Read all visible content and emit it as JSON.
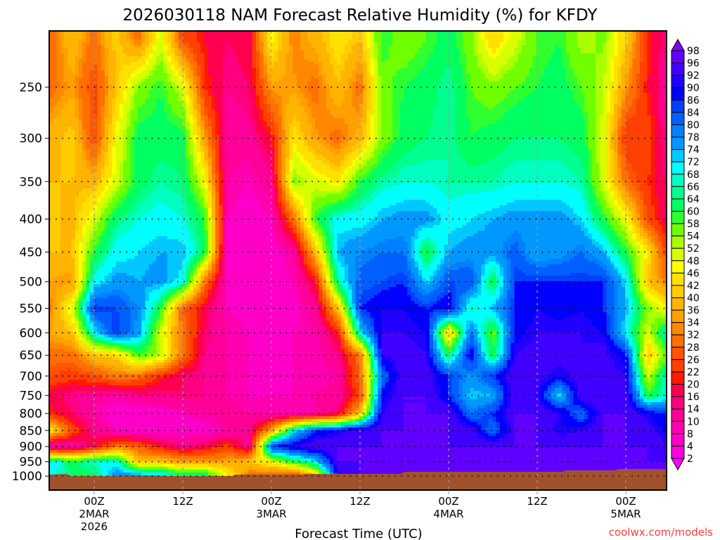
{
  "chart_data": {
    "type": "heatmap",
    "title": "2026030118 NAM Forecast Relative Humidity (%) for KFDY",
    "xlabel": "Forecast Time (UTC)",
    "ylabel": "",
    "credit": "coolwx.com/models",
    "x_unit": "hours since 18Z 1 Mar 2026",
    "xlim": [
      0,
      84
    ],
    "ylim_hPa": [
      1050,
      205
    ],
    "y_scale": "log-pressure",
    "grid": true,
    "yticks": [
      "250",
      "300",
      "350",
      "400",
      "450",
      "500",
      "550",
      "600",
      "650",
      "700",
      "750",
      "800",
      "850",
      "900",
      "950",
      "1000"
    ],
    "ytick_values": [
      250,
      300,
      350,
      400,
      450,
      500,
      550,
      600,
      650,
      700,
      750,
      800,
      850,
      900,
      950,
      1000
    ],
    "xticks": [
      {
        "hour": 6,
        "label": "00Z",
        "date": "2MAR",
        "year": "2026"
      },
      {
        "hour": 18,
        "label": "12Z",
        "date": "",
        "year": ""
      },
      {
        "hour": 30,
        "label": "00Z",
        "date": "3MAR",
        "year": ""
      },
      {
        "hour": 42,
        "label": "12Z",
        "date": "",
        "year": ""
      },
      {
        "hour": 54,
        "label": "00Z",
        "date": "4MAR",
        "year": ""
      },
      {
        "hour": 66,
        "label": "12Z",
        "date": "",
        "year": ""
      },
      {
        "hour": 78,
        "label": "00Z",
        "date": "5MAR",
        "year": ""
      }
    ],
    "colorbar": {
      "labels": [
        "98",
        "96",
        "92",
        "90",
        "86",
        "84",
        "80",
        "78",
        "74",
        "72",
        "68",
        "66",
        "64",
        "60",
        "58",
        "54",
        "52",
        "48",
        "46",
        "42",
        "40",
        "36",
        "34",
        "32",
        "28",
        "26",
        "22",
        "20",
        "16",
        "14",
        "10",
        "8",
        "4",
        "2"
      ],
      "colors_low_to_high": [
        "#ff00ff",
        "#ff00e0",
        "#ff00c8",
        "#ff00b0",
        "#ff0098",
        "#ff0080",
        "#ff0050",
        "#ff1a00",
        "#ff4000",
        "#ff5500",
        "#ff7000",
        "#ff8800",
        "#ffa000",
        "#ffb400",
        "#ffcc00",
        "#ffe000",
        "#ffff00",
        "#d8ff00",
        "#aaff00",
        "#70ff00",
        "#30ff30",
        "#00ff60",
        "#00ff90",
        "#00ffc0",
        "#00ffff",
        "#00c8ff",
        "#0098ff",
        "#0080ff",
        "#0060ff",
        "#0040ff",
        "#0000ff",
        "#2000ff",
        "#4000ff",
        "#6000ff",
        "#8000ff"
      ],
      "boundaries": [
        2,
        4,
        8,
        10,
        14,
        16,
        20,
        22,
        26,
        28,
        32,
        34,
        36,
        40,
        42,
        46,
        48,
        52,
        54,
        58,
        60,
        64,
        66,
        68,
        72,
        74,
        78,
        80,
        84,
        86,
        90,
        92,
        96,
        98
      ]
    },
    "terrain_color": "#a0522d",
    "hours": [
      0,
      3,
      6,
      9,
      12,
      15,
      18,
      21,
      24,
      27,
      30,
      33,
      36,
      39,
      42,
      45,
      48,
      51,
      54,
      57,
      60,
      63,
      66,
      69,
      72,
      75,
      78,
      81,
      84
    ],
    "levels_hPa": [
      210,
      250,
      300,
      350,
      400,
      450,
      500,
      550,
      600,
      650,
      700,
      750,
      800,
      850,
      900,
      950,
      1000
    ],
    "rh": [
      [
        28,
        40,
        30,
        42,
        30,
        50,
        25,
        20,
        16,
        18,
        48,
        32,
        38,
        45,
        40,
        60,
        55,
        58,
        62,
        55,
        42,
        50,
        58,
        60,
        52,
        55,
        42,
        22,
        12
      ],
      [
        30,
        35,
        25,
        40,
        55,
        60,
        50,
        22,
        14,
        16,
        35,
        35,
        30,
        40,
        30,
        56,
        60,
        62,
        66,
        58,
        55,
        58,
        60,
        62,
        58,
        52,
        35,
        20,
        10
      ],
      [
        38,
        42,
        25,
        48,
        62,
        62,
        62,
        35,
        12,
        12,
        20,
        45,
        35,
        30,
        38,
        55,
        62,
        64,
        66,
        60,
        62,
        64,
        64,
        64,
        62,
        50,
        22,
        25,
        10
      ],
      [
        40,
        40,
        38,
        50,
        62,
        66,
        64,
        48,
        10,
        8,
        12,
        55,
        50,
        45,
        60,
        66,
        68,
        68,
        66,
        66,
        66,
        68,
        68,
        68,
        66,
        50,
        30,
        22,
        14
      ],
      [
        42,
        38,
        50,
        64,
        68,
        70,
        68,
        60,
        8,
        6,
        8,
        30,
        60,
        70,
        70,
        74,
        76,
        76,
        70,
        72,
        74,
        76,
        76,
        76,
        72,
        60,
        48,
        25,
        16
      ],
      [
        40,
        40,
        60,
        70,
        72,
        74,
        74,
        62,
        6,
        6,
        6,
        10,
        40,
        74,
        78,
        80,
        80,
        60,
        74,
        76,
        76,
        82,
        74,
        76,
        80,
        74,
        60,
        45,
        20
      ],
      [
        36,
        34,
        70,
        76,
        74,
        76,
        70,
        30,
        8,
        6,
        6,
        8,
        20,
        66,
        82,
        84,
        86,
        72,
        84,
        84,
        60,
        86,
        86,
        86,
        86,
        86,
        72,
        40,
        30
      ],
      [
        32,
        50,
        86,
        84,
        78,
        60,
        28,
        18,
        8,
        6,
        6,
        6,
        12,
        40,
        86,
        90,
        90,
        86,
        90,
        66,
        74,
        86,
        90,
        88,
        90,
        86,
        74,
        55,
        45
      ],
      [
        36,
        40,
        70,
        86,
        76,
        50,
        30,
        16,
        10,
        8,
        6,
        8,
        10,
        20,
        70,
        92,
        92,
        90,
        40,
        80,
        56,
        88,
        92,
        92,
        92,
        90,
        70,
        50,
        72
      ],
      [
        30,
        30,
        40,
        42,
        58,
        52,
        30,
        14,
        10,
        8,
        6,
        8,
        8,
        14,
        30,
        92,
        94,
        92,
        62,
        90,
        60,
        92,
        94,
        94,
        92,
        94,
        88,
        40,
        60
      ],
      [
        26,
        24,
        26,
        32,
        30,
        22,
        16,
        14,
        10,
        8,
        6,
        8,
        8,
        10,
        30,
        80,
        96,
        94,
        86,
        76,
        86,
        96,
        94,
        90,
        94,
        94,
        92,
        50,
        72
      ],
      [
        18,
        14,
        12,
        10,
        14,
        14,
        16,
        14,
        10,
        8,
        8,
        8,
        10,
        12,
        24,
        88,
        96,
        96,
        86,
        72,
        74,
        96,
        92,
        70,
        96,
        96,
        94,
        60,
        70
      ],
      [
        22,
        16,
        10,
        4,
        4,
        6,
        8,
        10,
        12,
        10,
        8,
        8,
        10,
        16,
        40,
        92,
        96,
        96,
        96,
        80,
        86,
        96,
        96,
        92,
        80,
        96,
        96,
        90,
        84
      ],
      [
        46,
        26,
        14,
        8,
        6,
        6,
        6,
        6,
        10,
        14,
        36,
        70,
        86,
        90,
        94,
        96,
        96,
        96,
        96,
        94,
        80,
        96,
        96,
        90,
        92,
        96,
        96,
        94,
        88
      ],
      [
        8,
        10,
        18,
        30,
        28,
        20,
        14,
        18,
        24,
        12,
        86,
        92,
        96,
        96,
        96,
        96,
        96,
        96,
        96,
        96,
        96,
        96,
        96,
        96,
        96,
        96,
        96,
        96,
        92
      ],
      [
        72,
        62,
        68,
        70,
        40,
        40,
        36,
        34,
        36,
        40,
        48,
        60,
        70,
        96,
        96,
        96,
        96,
        96,
        96,
        96,
        96,
        96,
        96,
        96,
        96,
        96,
        96,
        96,
        96
      ],
      [
        70,
        64,
        62,
        78,
        78,
        74,
        66,
        66,
        48,
        30,
        28,
        22,
        40,
        90,
        96,
        96,
        96,
        96,
        96,
        96,
        96,
        96,
        96,
        96,
        96,
        96,
        96,
        96,
        96
      ]
    ]
  }
}
